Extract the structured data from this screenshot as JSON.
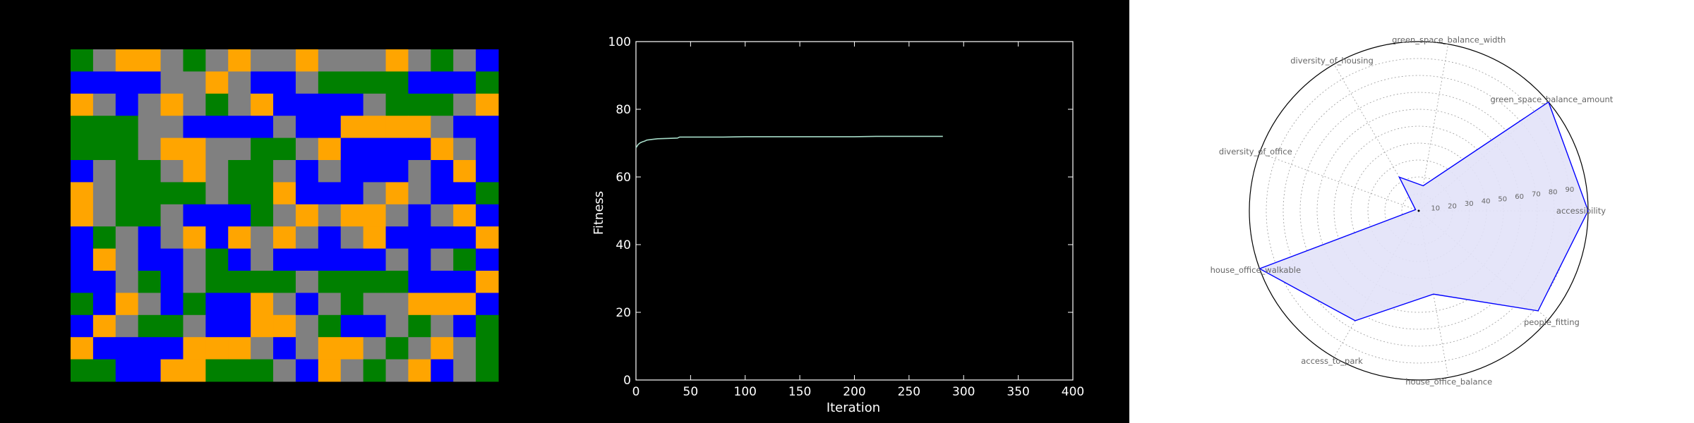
{
  "colors": {
    "background": "#000000",
    "road": "#808080",
    "housing": "#ffa500",
    "office": "#0000ff",
    "green": "#008000",
    "fitness_line": "#a6dcc8",
    "radar_line": "#0000ff",
    "radar_fill": "#e2e2f8"
  },
  "chart_data": [
    {
      "type": "heatmap",
      "rows": 15,
      "cols": 19,
      "legend": {
        "G": "road",
        "O": "housing",
        "B": "office",
        "N": "green"
      },
      "cells": [
        "NGOOGNGOGGOGGGOGNGB",
        "BBBBGGOGBBGNNNNBBBN",
        "OGBGOGNGOBBBBGNNNGO",
        "NNNGGBBBBGBBOOOOGBB",
        "NNNGOOGGNNGOBBBBOGB",
        "BGNNGOGNNGBGBBBGBOB",
        "OGNNNNGNNOBBBGOGBBN",
        "OGNNGBBBNGOGOOGBGOB",
        "BNGBGOBOGOGBGOBBBBO",
        "BOGBBGNBGBBBBBGBGNB",
        "BBGNBGNNNNGNNNNBBBO",
        "NBOGBNBBOGBGNGGOOOB",
        "BOGNNGBBOOGNBBGNGBN",
        "OBBBBOOOGBGOOGNGOGN",
        "NNBBOONNNGBOGNGOBGN"
      ]
    },
    {
      "type": "line",
      "xlabel": "Iteration",
      "ylabel": "Fitness",
      "xlim": [
        0,
        400
      ],
      "ylim": [
        0,
        100
      ],
      "xticks": [
        "0",
        "50",
        "100",
        "150",
        "200",
        "250",
        "300",
        "350",
        "400"
      ],
      "yticks": [
        "0",
        "20",
        "40",
        "60",
        "80",
        "100"
      ],
      "series": [
        {
          "x": [
            0,
            2,
            4,
            6,
            8,
            10,
            15,
            20,
            30,
            38,
            40,
            60,
            80,
            100,
            150,
            200,
            220,
            250,
            281
          ],
          "y": [
            68.6,
            69.6,
            70.1,
            70.4,
            70.6,
            70.9,
            71.1,
            71.3,
            71.4,
            71.5,
            71.8,
            71.8,
            71.8,
            71.9,
            71.9,
            71.9,
            72.0,
            72.0,
            72.0
          ]
        }
      ]
    },
    {
      "type": "radar",
      "rmax": 100,
      "rticks": [
        "10",
        "20",
        "30",
        "40",
        "50",
        "60",
        "70",
        "80",
        "90"
      ],
      "categories": [
        "accessibility",
        "green_space_balance_amount",
        "green_space_balance_width",
        "diversity_of_housing",
        "diversity_of_office",
        "house_office_walkable",
        "access_to_park",
        "house_office_balance",
        "people_fitting"
      ],
      "values": [
        100,
        100,
        15,
        23,
        2,
        100,
        75,
        50,
        92
      ]
    }
  ]
}
